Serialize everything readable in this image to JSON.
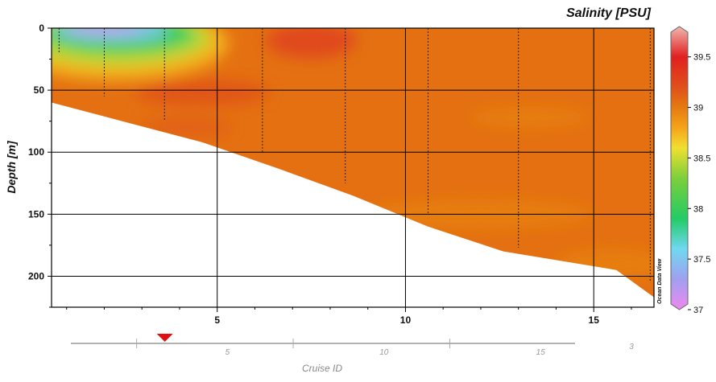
{
  "chart_data": {
    "type": "heatmap",
    "title": "Salinity [PSU]",
    "ylabel": "Depth [m]",
    "xlabel": "",
    "xlim": [
      0.6,
      16.6
    ],
    "ylim": [
      0,
      225
    ],
    "x_ticks": [
      5,
      10,
      15
    ],
    "y_ticks": [
      0,
      50,
      100,
      150,
      200
    ],
    "grid": true,
    "bottom_depth_profile": {
      "x": [
        0.6,
        2.6,
        4.6,
        6.6,
        8.6,
        10.6,
        12.6,
        14.6,
        15.6,
        16.6
      ],
      "depth": [
        60,
        76,
        92,
        113,
        135,
        160,
        180,
        190,
        195,
        217
      ]
    },
    "stations": {
      "x": [
        0.8,
        2.0,
        3.6,
        6.2,
        8.4,
        10.6,
        13.0,
        16.5
      ],
      "max_depth": [
        20,
        55,
        75,
        100,
        125,
        150,
        177,
        205
      ]
    },
    "colorbar": {
      "min": 37,
      "max": 39.8,
      "ticks": [
        37,
        37.5,
        38,
        38.5,
        39,
        39.5
      ],
      "tick_labels": [
        "37",
        "37.5",
        "38",
        "38.5",
        "39",
        "39.5"
      ],
      "stops": [
        {
          "value": 37.0,
          "color": "#ee88ee"
        },
        {
          "value": 37.3,
          "color": "#a0a0f0"
        },
        {
          "value": 37.6,
          "color": "#70d8f0"
        },
        {
          "value": 37.9,
          "color": "#22cc66"
        },
        {
          "value": 38.3,
          "color": "#7ccf3a"
        },
        {
          "value": 38.6,
          "color": "#f0e030"
        },
        {
          "value": 38.8,
          "color": "#f5a31a"
        },
        {
          "value": 39.0,
          "color": "#e57a10"
        },
        {
          "value": 39.2,
          "color": "#e0501a"
        },
        {
          "value": 39.5,
          "color": "#e02020"
        },
        {
          "value": 39.8,
          "color": "#f0b8b0"
        }
      ]
    },
    "background_salinity": 39.05,
    "features": [
      {
        "name": "fresh surface lens",
        "x": 2.2,
        "depth": 3,
        "salinity": 37.3
      },
      {
        "name": "salty core",
        "x": 7.5,
        "depth": 10,
        "salinity": 39.25
      },
      {
        "name": "salty patch",
        "x": 4.6,
        "depth": 50,
        "salinity": 39.2
      },
      {
        "name": "lighter patch",
        "x": 13.3,
        "depth": 70,
        "salinity": 39.0
      }
    ]
  },
  "labels": {
    "title": "Salinity [PSU]",
    "ylabel": "Depth [m]",
    "y_tick_labels": [
      "0",
      "50",
      "100",
      "150",
      "200"
    ],
    "x_tick_labels": [
      "5",
      "10",
      "15"
    ],
    "watermark": "Ocean Data View",
    "cruise_label": "Cruise ID",
    "cruise_tick_labels": [
      "5",
      "10",
      "15"
    ],
    "cruise_extra": "3"
  },
  "cruise_marker": {
    "x": 3.0,
    "color": "#e01010"
  }
}
